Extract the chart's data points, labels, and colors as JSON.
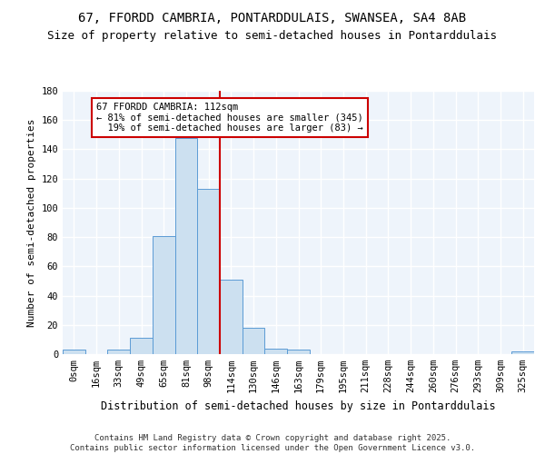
{
  "title1": "67, FFORDD CAMBRIA, PONTARDDULAIS, SWANSEA, SA4 8AB",
  "title2": "Size of property relative to semi-detached houses in Pontarddulais",
  "xlabel": "Distribution of semi-detached houses by size in Pontarddulais",
  "ylabel": "Number of semi-detached properties",
  "bins": [
    "0sqm",
    "16sqm",
    "33sqm",
    "49sqm",
    "65sqm",
    "81sqm",
    "98sqm",
    "114sqm",
    "130sqm",
    "146sqm",
    "163sqm",
    "179sqm",
    "195sqm",
    "211sqm",
    "228sqm",
    "244sqm",
    "260sqm",
    "276sqm",
    "293sqm",
    "309sqm",
    "325sqm"
  ],
  "values": [
    3,
    0,
    3,
    11,
    81,
    148,
    113,
    51,
    18,
    4,
    3,
    0,
    0,
    0,
    0,
    0,
    0,
    0,
    0,
    0,
    2
  ],
  "bar_color": "#cce0f0",
  "bar_edge_color": "#5b9bd5",
  "annotation_text": "67 FFORDD CAMBRIA: 112sqm\n← 81% of semi-detached houses are smaller (345)\n  19% of semi-detached houses are larger (83) →",
  "annotation_box_color": "#ffffff",
  "annotation_box_edge": "#cc0000",
  "vline_color": "#cc0000",
  "vline_x": 6.5,
  "ylim": [
    0,
    180
  ],
  "yticks": [
    0,
    20,
    40,
    60,
    80,
    100,
    120,
    140,
    160,
    180
  ],
  "footer": "Contains HM Land Registry data © Crown copyright and database right 2025.\nContains public sector information licensed under the Open Government Licence v3.0.",
  "bg_color": "#eef4fb",
  "grid_color": "#ffffff",
  "title1_fontsize": 10,
  "title2_fontsize": 9,
  "xlabel_fontsize": 8.5,
  "ylabel_fontsize": 8,
  "tick_fontsize": 7.5,
  "annot_fontsize": 7.5,
  "footer_fontsize": 6.5
}
